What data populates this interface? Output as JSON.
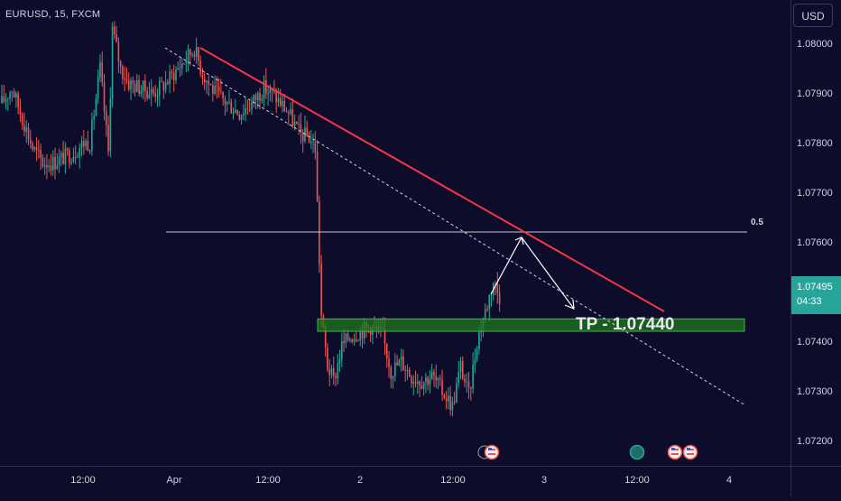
{
  "header": {
    "symbol": "EURUSD, 15, FXCM",
    "currency": "USD"
  },
  "price_tag": {
    "price": "1.07495",
    "countdown": "04:33",
    "color": "#26a69a"
  },
  "annotations": {
    "fib_label": "0.5",
    "tp_label": "TP - 1.07440"
  },
  "colors": {
    "background": "#0d0d2b",
    "bull": "#26a69a",
    "bear": "#ef5350",
    "trendline": "#f23645",
    "zone_fill": "#1e7a1e",
    "zone_border": "#4caf50",
    "text": "#d1d4dc"
  },
  "event_icons": [
    "us-flag-icon",
    "us-flag-icon",
    "globe-icon",
    "us-flag-icon",
    "us-flag-icon"
  ],
  "chart_data": {
    "type": "candlestick",
    "title": "",
    "xlabel": "",
    "ylabel": "",
    "ylim": [
      1.0715,
      1.081
    ],
    "y_ticks": [
      "1.08000",
      "1.07900",
      "1.07800",
      "1.07700",
      "1.07600",
      "1.07400",
      "1.07300",
      "1.07200"
    ],
    "x_ticks": [
      "12:00",
      "Apr",
      "12:00",
      "2",
      "12:00",
      "3",
      "12:00",
      "4"
    ],
    "approx_path": [
      [
        0,
        1.0788
      ],
      [
        5,
        1.0791
      ],
      [
        10,
        1.0785
      ],
      [
        15,
        1.0779
      ],
      [
        20,
        1.0776
      ],
      [
        25,
        1.0776
      ],
      [
        30,
        1.0777
      ],
      [
        35,
        1.0778
      ],
      [
        40,
        1.078
      ],
      [
        43,
        1.078
      ],
      [
        48,
        1.0795
      ],
      [
        52,
        1.0778
      ],
      [
        54,
        1.0803
      ],
      [
        58,
        1.0795
      ],
      [
        62,
        1.0792
      ],
      [
        68,
        1.0791
      ],
      [
        74,
        1.079
      ],
      [
        80,
        1.0792
      ],
      [
        86,
        1.0795
      ],
      [
        90,
        1.0797
      ],
      [
        94,
        1.0799
      ],
      [
        98,
        1.0794
      ],
      [
        104,
        1.079
      ],
      [
        110,
        1.0788
      ],
      [
        116,
        1.0786
      ],
      [
        122,
        1.0788
      ],
      [
        128,
        1.0791
      ],
      [
        134,
        1.0789
      ],
      [
        140,
        1.0786
      ],
      [
        145,
        1.0782
      ],
      [
        150,
        1.0781
      ],
      [
        153,
        1.0779
      ],
      [
        156,
        1.0745
      ],
      [
        159,
        1.0735
      ],
      [
        162,
        1.0732
      ],
      [
        166,
        1.0739
      ],
      [
        170,
        1.0741
      ],
      [
        175,
        1.0742
      ],
      [
        180,
        1.0743
      ],
      [
        186,
        1.0741
      ],
      [
        190,
        1.0734
      ],
      [
        195,
        1.0736
      ],
      [
        200,
        1.0733
      ],
      [
        205,
        1.0732
      ],
      [
        210,
        1.0733
      ],
      [
        215,
        1.073
      ],
      [
        220,
        1.0727
      ],
      [
        224,
        1.0735
      ],
      [
        228,
        1.0729
      ],
      [
        232,
        1.074
      ],
      [
        236,
        1.0746
      ],
      [
        240,
        1.0752
      ],
      [
        243,
        1.0749
      ]
    ],
    "tp_zone": [
      1.0742,
      1.07445
    ],
    "fib_0_5_level": 1.0762,
    "tp_level": 1.0744,
    "current_price": 1.07495
  }
}
